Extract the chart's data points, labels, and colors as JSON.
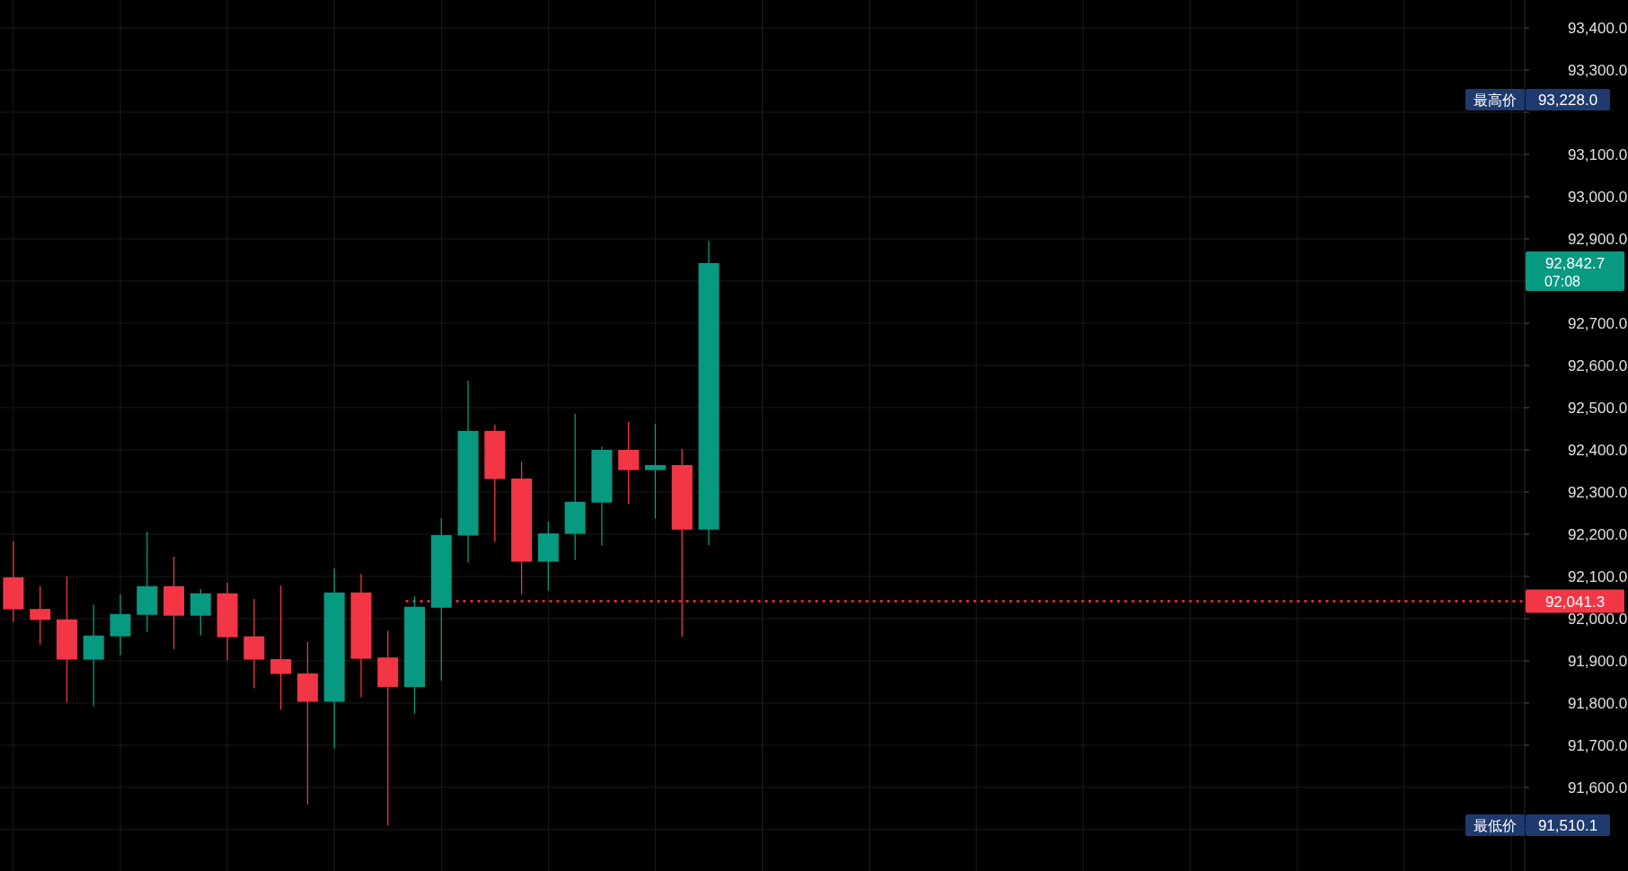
{
  "chart_data": {
    "type": "candlestick",
    "categories": [
      null,
      null,
      null,
      null,
      null,
      null,
      null,
      null,
      null,
      null,
      null,
      null,
      null,
      null,
      null,
      null,
      null,
      null,
      null,
      null,
      null,
      null,
      null,
      null,
      null,
      null,
      null,
      null,
      null,
      null,
      null,
      null,
      null,
      null,
      null,
      null,
      null,
      null,
      null,
      null,
      null,
      null,
      null,
      null,
      null,
      null,
      null,
      null,
      null,
      null,
      null,
      null,
      null,
      null,
      null,
      null,
      null
    ],
    "ohlc": [
      [
        92098,
        92184,
        91992,
        92022
      ],
      [
        92023,
        92077,
        91939,
        91997
      ],
      [
        91998,
        92100,
        91801,
        91903
      ],
      [
        91903,
        92033,
        91792,
        91960
      ],
      [
        91958,
        92058,
        91913,
        92011
      ],
      [
        92009,
        92206,
        91969,
        92077
      ],
      [
        92077,
        92147,
        91928,
        92007
      ],
      [
        92007,
        92070,
        91960,
        92060
      ],
      [
        92060,
        92085,
        91901,
        91956
      ],
      [
        91958,
        92047,
        91835,
        91903
      ],
      [
        91904,
        92079,
        91784,
        91869
      ],
      [
        91870,
        91945,
        91560,
        91803
      ],
      [
        91803,
        92119,
        91692,
        92062
      ],
      [
        92062,
        92106,
        91814,
        91905
      ],
      [
        91908,
        91971,
        91510.1,
        91838
      ],
      [
        91838,
        92053,
        91775,
        92028
      ],
      [
        92026,
        92238,
        91853,
        92198
      ],
      [
        92197,
        92564,
        92133,
        92445
      ],
      [
        92445,
        92460,
        92182,
        92331
      ],
      [
        92332,
        92372,
        92058,
        92135
      ],
      [
        92135,
        92230,
        92067,
        92202
      ],
      [
        92201,
        92485,
        92139,
        92277
      ],
      [
        92275,
        92408,
        92173,
        92400
      ],
      [
        92400,
        92466,
        92272,
        92352
      ],
      [
        92352,
        92462,
        92237,
        92364
      ],
      [
        92364,
        92402,
        91957,
        92211
      ],
      [
        92211,
        92895,
        92174,
        92842.7
      ],
      null,
      null,
      null,
      null,
      null,
      null,
      null,
      null,
      null,
      null,
      null,
      null,
      null,
      null,
      null,
      null,
      null,
      null,
      null,
      null,
      null,
      null,
      null,
      null,
      null,
      null,
      null,
      null,
      null,
      null
    ],
    "colors": [
      "#f23645",
      "#f23645",
      "#f23645",
      "#089981",
      "#089981",
      "#089981",
      "#f23645",
      "#089981",
      "#f23645",
      "#f23645",
      "#f23645",
      "#f23645",
      "#089981",
      "#f23645",
      "#f23645",
      "#089981",
      "#089981",
      "#089981",
      "#f23645",
      "#f23645",
      "#089981",
      "#089981",
      "#089981",
      "#f23645",
      "#089981",
      "#f23645",
      "#089981",
      null,
      null,
      null,
      null,
      null,
      null,
      null,
      null,
      null,
      null,
      null,
      null,
      null,
      null,
      null,
      null,
      null,
      null,
      null,
      null,
      null,
      null,
      null,
      null,
      null,
      null,
      null,
      null,
      null,
      null
    ],
    "ylim": [
      91402,
      93466
    ],
    "yticks": [
      {
        "value": 91500,
        "label": null
      },
      {
        "value": 91600,
        "label": "91,600.0"
      },
      {
        "value": 91700,
        "label": "91,700.0"
      },
      {
        "value": 91800,
        "label": "91,800.0"
      },
      {
        "value": 91900,
        "label": "91,900.0"
      },
      {
        "value": 92000,
        "label": "92,000.0"
      },
      {
        "value": 92100,
        "label": "92,100.0"
      },
      {
        "value": 92200,
        "label": "92,200.0"
      },
      {
        "value": 92300,
        "label": "92,300.0"
      },
      {
        "value": 92400,
        "label": "92,400.0"
      },
      {
        "value": 92500,
        "label": "92,500.0"
      },
      {
        "value": 92600,
        "label": "92,600.0"
      },
      {
        "value": 92700,
        "label": "92,700.0"
      },
      {
        "value": 92800,
        "label": null
      },
      {
        "value": 92900,
        "label": "92,900.0"
      },
      {
        "value": 93000,
        "label": "93,000.0"
      },
      {
        "value": 93100,
        "label": "93,100.0"
      },
      {
        "value": 93200,
        "label": null
      },
      {
        "value": 93300,
        "label": "93,300.0"
      },
      {
        "value": 93400,
        "label": "93,400.0"
      }
    ],
    "grid": true,
    "ref_lines": [
      {
        "axis": "y",
        "value": 92041.3,
        "label": "92,041.3",
        "color": "#f23645",
        "line_style": "dotted"
      }
    ],
    "annotations": [
      "最高价",
      "93,228.0",
      "最低价",
      "91,510.1",
      "92,842.7",
      "07:08"
    ]
  }
}
